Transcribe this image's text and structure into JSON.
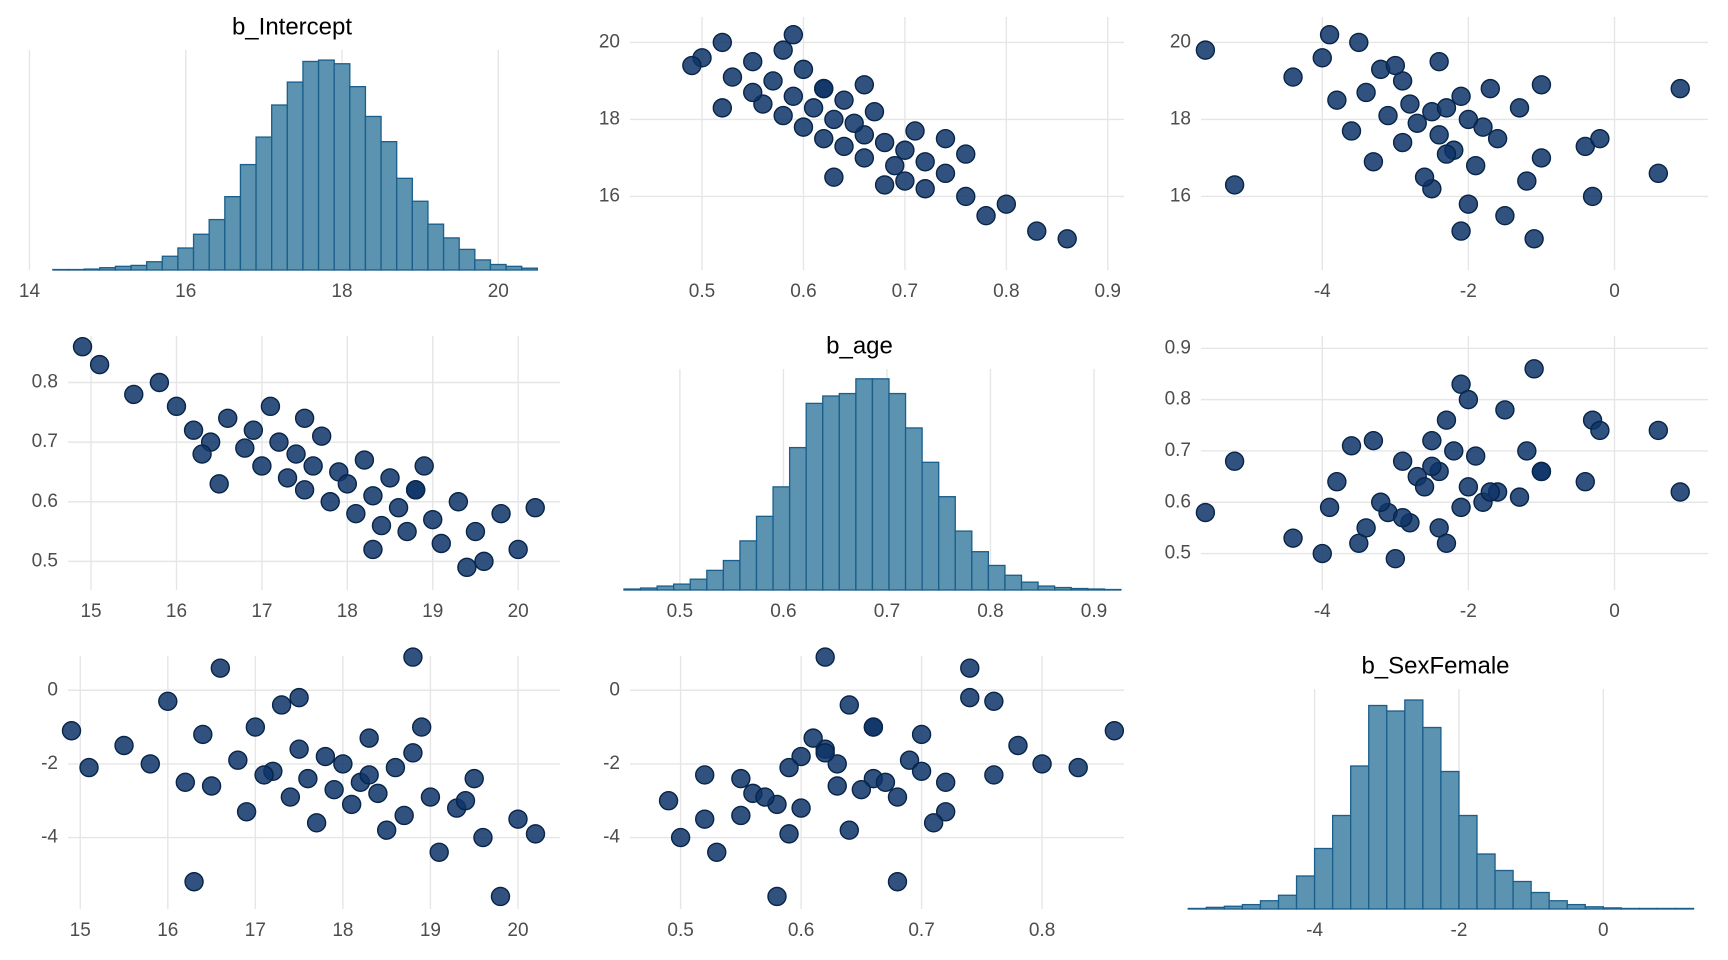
{
  "chart_data": [
    {
      "type": "histogram",
      "title": "b_Intercept",
      "color": "#5b93b0",
      "edgecolor": "#1a5e8c",
      "bins": [
        14.3,
        14.5,
        14.7,
        14.9,
        15.1,
        15.3,
        15.5,
        15.7,
        15.9,
        16.1,
        16.3,
        16.5,
        16.7,
        16.9,
        17.1,
        17.3,
        17.5,
        17.7,
        17.9,
        18.1,
        18.3,
        18.5,
        18.7,
        18.9,
        19.1,
        19.3,
        19.5,
        19.7,
        19.9,
        20.1,
        20.3,
        20.5
      ],
      "values": [
        1,
        1,
        2,
        5,
        8,
        10,
        18,
        30,
        48,
        78,
        110,
        160,
        230,
        290,
        360,
        410,
        455,
        458,
        450,
        400,
        335,
        280,
        200,
        150,
        100,
        70,
        45,
        22,
        12,
        8,
        4
      ],
      "xlim": [
        13.93,
        20.79
      ],
      "ylim": [
        0,
        480
      ],
      "xticks": [
        14,
        16,
        18,
        20
      ],
      "grid": true
    },
    {
      "type": "scatter",
      "color": "#0d3469",
      "edgecolor": "#082447",
      "x": [
        0.86,
        0.83,
        0.78,
        0.76,
        0.72,
        0.7,
        0.74,
        0.69,
        0.72,
        0.66,
        0.7,
        0.64,
        0.68,
        0.62,
        0.66,
        0.71,
        0.6,
        0.65,
        0.63,
        0.58,
        0.67,
        0.61,
        0.56,
        0.64,
        0.59,
        0.55,
        0.62,
        0.57,
        0.53,
        0.6,
        0.55,
        0.5,
        0.58,
        0.52,
        0.59,
        0.76,
        0.66,
        0.63,
        0.74,
        0.52,
        0.8,
        0.49,
        0.62,
        0.68
      ],
      "y": [
        14.9,
        15.1,
        15.5,
        16.0,
        16.2,
        16.4,
        16.6,
        16.8,
        16.9,
        17.0,
        17.2,
        17.3,
        17.4,
        17.5,
        17.6,
        17.7,
        17.8,
        17.9,
        18.0,
        18.1,
        18.2,
        18.3,
        18.4,
        18.5,
        18.6,
        18.7,
        18.8,
        19.0,
        19.1,
        19.3,
        19.5,
        19.6,
        19.8,
        20.0,
        20.2,
        17.1,
        18.9,
        16.5,
        17.5,
        18.3,
        15.8,
        19.4,
        18.8,
        16.3
      ],
      "xlim": [
        0.429,
        0.916
      ],
      "ylim": [
        14.09,
        20.66
      ],
      "xticks": [
        0.5,
        0.6,
        0.7,
        0.8,
        0.9
      ],
      "yticks": [
        16,
        18,
        20
      ],
      "grid": true
    },
    {
      "type": "scatter",
      "color": "#0d3469",
      "edgecolor": "#082447",
      "x": [
        -1.1,
        -2.1,
        -1.5,
        -0.3,
        -2.5,
        -1.2,
        0.6,
        -1.9,
        -3.3,
        -1.0,
        -2.2,
        -0.4,
        -2.9,
        -1.6,
        -2.4,
        -3.6,
        -1.8,
        -2.7,
        -2.0,
        -3.1,
        -2.5,
        -1.3,
        -2.8,
        -3.8,
        -2.1,
        -3.4,
        -1.7,
        -2.9,
        -4.4,
        -3.2,
        -2.4,
        -4.0,
        -5.6,
        -3.5,
        -3.9,
        -2.3,
        -1.0,
        -2.6,
        -0.2,
        -2.3,
        -2.0,
        -3.0,
        0.9,
        -5.2
      ],
      "y": [
        14.9,
        15.1,
        15.5,
        16.0,
        16.2,
        16.4,
        16.6,
        16.8,
        16.9,
        17.0,
        17.2,
        17.3,
        17.4,
        17.5,
        17.6,
        17.7,
        17.8,
        17.9,
        18.0,
        18.1,
        18.2,
        18.3,
        18.4,
        18.5,
        18.6,
        18.7,
        18.8,
        19.0,
        19.1,
        19.3,
        19.5,
        19.6,
        19.8,
        20.0,
        20.2,
        17.1,
        18.9,
        16.5,
        17.5,
        18.3,
        15.8,
        19.4,
        18.8,
        16.3
      ],
      "xlim": [
        -5.66,
        1.28
      ],
      "ylim": [
        14.09,
        20.66
      ],
      "xticks": [
        -4,
        -2,
        0
      ],
      "yticks": [
        16,
        18,
        20
      ],
      "grid": true
    },
    {
      "type": "scatter",
      "color": "#0d3469",
      "edgecolor": "#082447",
      "x": [
        14.9,
        15.1,
        15.5,
        16.0,
        16.2,
        16.4,
        16.6,
        16.8,
        16.9,
        17.0,
        17.2,
        17.3,
        17.4,
        17.5,
        17.6,
        17.7,
        17.8,
        17.9,
        18.0,
        18.1,
        18.2,
        18.3,
        18.4,
        18.5,
        18.6,
        18.7,
        18.8,
        19.0,
        19.1,
        19.3,
        19.5,
        19.6,
        19.8,
        20.0,
        20.2,
        17.1,
        18.9,
        16.5,
        17.5,
        18.3,
        15.8,
        19.4,
        18.8,
        16.3
      ],
      "y": [
        0.86,
        0.83,
        0.78,
        0.76,
        0.72,
        0.7,
        0.74,
        0.69,
        0.72,
        0.66,
        0.7,
        0.64,
        0.68,
        0.62,
        0.66,
        0.71,
        0.6,
        0.65,
        0.63,
        0.58,
        0.67,
        0.61,
        0.56,
        0.64,
        0.59,
        0.55,
        0.62,
        0.57,
        0.53,
        0.6,
        0.55,
        0.5,
        0.58,
        0.52,
        0.59,
        0.76,
        0.66,
        0.63,
        0.74,
        0.52,
        0.8,
        0.49,
        0.62,
        0.68
      ],
      "xlim": [
        14.73,
        20.49
      ],
      "ylim": [
        0.452,
        0.878
      ],
      "xticks": [
        15,
        16,
        17,
        18,
        19,
        20
      ],
      "yticks": [
        0.5,
        0.6,
        0.7,
        0.8
      ],
      "grid": true
    },
    {
      "type": "histogram",
      "title": "b_age",
      "color": "#5b93b0",
      "edgecolor": "#1a5e8c",
      "bins": [
        0.446,
        0.462,
        0.478,
        0.494,
        0.51,
        0.526,
        0.542,
        0.558,
        0.574,
        0.59,
        0.606,
        0.622,
        0.638,
        0.654,
        0.67,
        0.686,
        0.702,
        0.718,
        0.734,
        0.75,
        0.766,
        0.782,
        0.798,
        0.814,
        0.83,
        0.846,
        0.862,
        0.878,
        0.894,
        0.91,
        0.926
      ],
      "values": [
        2,
        4,
        8,
        12,
        22,
        40,
        60,
        100,
        150,
        210,
        290,
        380,
        395,
        400,
        430,
        430,
        400,
        330,
        260,
        190,
        120,
        78,
        50,
        30,
        16,
        8,
        5,
        3,
        2,
        1
      ],
      "xlim": [
        0.418,
        0.929
      ],
      "ylim": [
        0,
        450
      ],
      "xticks": [
        0.5,
        0.6,
        0.7,
        0.8,
        0.9
      ],
      "grid": true
    },
    {
      "type": "scatter",
      "color": "#0d3469",
      "edgecolor": "#082447",
      "x": [
        -1.1,
        -2.1,
        -1.5,
        -0.3,
        -2.5,
        -1.2,
        0.6,
        -1.9,
        -3.3,
        -1.0,
        -2.2,
        -0.4,
        -2.9,
        -1.6,
        -2.4,
        -3.6,
        -1.8,
        -2.7,
        -2.0,
        -3.1,
        -2.5,
        -1.3,
        -2.8,
        -3.8,
        -2.1,
        -3.4,
        -1.7,
        -2.9,
        -4.4,
        -3.2,
        -2.4,
        -4.0,
        -5.6,
        -3.5,
        -3.9,
        -2.3,
        -1.0,
        -2.6,
        -0.2,
        -2.3,
        -2.0,
        -3.0,
        0.9,
        -5.2
      ],
      "y": [
        0.86,
        0.83,
        0.78,
        0.76,
        0.72,
        0.7,
        0.74,
        0.69,
        0.72,
        0.66,
        0.7,
        0.64,
        0.68,
        0.62,
        0.66,
        0.71,
        0.6,
        0.65,
        0.63,
        0.58,
        0.67,
        0.61,
        0.56,
        0.64,
        0.59,
        0.55,
        0.62,
        0.57,
        0.53,
        0.6,
        0.55,
        0.5,
        0.58,
        0.52,
        0.59,
        0.76,
        0.66,
        0.63,
        0.74,
        0.52,
        0.8,
        0.49,
        0.62,
        0.68
      ],
      "xlim": [
        -5.66,
        1.28
      ],
      "ylim": [
        0.429,
        0.924
      ],
      "xticks": [
        -4,
        -2,
        0
      ],
      "yticks": [
        0.5,
        0.6,
        0.7,
        0.8,
        0.9
      ],
      "grid": true
    },
    {
      "type": "scatter",
      "color": "#0d3469",
      "edgecolor": "#082447",
      "x": [
        14.9,
        15.1,
        15.5,
        16.0,
        16.2,
        16.4,
        16.6,
        16.8,
        16.9,
        17.0,
        17.2,
        17.3,
        17.4,
        17.5,
        17.6,
        17.7,
        17.8,
        17.9,
        18.0,
        18.1,
        18.2,
        18.3,
        18.4,
        18.5,
        18.6,
        18.7,
        18.8,
        19.0,
        19.1,
        19.3,
        19.5,
        19.6,
        19.8,
        20.0,
        20.2,
        17.1,
        18.9,
        16.5,
        17.5,
        18.3,
        15.8,
        19.4,
        18.8,
        16.3
      ],
      "y": [
        -1.1,
        -2.1,
        -1.5,
        -0.3,
        -2.5,
        -1.2,
        0.6,
        -1.9,
        -3.3,
        -1.0,
        -2.2,
        -0.4,
        -2.9,
        -1.6,
        -2.4,
        -3.6,
        -1.8,
        -2.7,
        -2.0,
        -3.1,
        -2.5,
        -1.3,
        -2.8,
        -3.8,
        -2.1,
        -3.4,
        -1.7,
        -2.9,
        -4.4,
        -3.2,
        -2.4,
        -4.0,
        -5.6,
        -3.5,
        -3.9,
        -2.3,
        -1.0,
        -2.6,
        -0.2,
        -2.3,
        -2.0,
        -3.0,
        0.9,
        -5.2
      ],
      "xlim": [
        14.86,
        20.48
      ],
      "ylim": [
        -5.94,
        0.93
      ],
      "xticks": [
        15,
        16,
        17,
        18,
        19,
        20
      ],
      "yticks": [
        -4,
        -2,
        0
      ],
      "grid": true
    },
    {
      "type": "scatter",
      "color": "#0d3469",
      "edgecolor": "#082447",
      "x": [
        0.86,
        0.83,
        0.78,
        0.76,
        0.72,
        0.7,
        0.74,
        0.69,
        0.72,
        0.66,
        0.7,
        0.64,
        0.68,
        0.62,
        0.66,
        0.71,
        0.6,
        0.65,
        0.63,
        0.58,
        0.67,
        0.61,
        0.56,
        0.64,
        0.59,
        0.55,
        0.62,
        0.57,
        0.53,
        0.6,
        0.55,
        0.5,
        0.58,
        0.52,
        0.59,
        0.76,
        0.66,
        0.63,
        0.74,
        0.52,
        0.8,
        0.49,
        0.62,
        0.68
      ],
      "y": [
        -1.1,
        -2.1,
        -1.5,
        -0.3,
        -2.5,
        -1.2,
        0.6,
        -1.9,
        -3.3,
        -1.0,
        -2.2,
        -0.4,
        -2.9,
        -1.6,
        -2.4,
        -3.6,
        -1.8,
        -2.7,
        -2.0,
        -3.1,
        -2.5,
        -1.3,
        -2.8,
        -3.8,
        -2.1,
        -3.4,
        -1.7,
        -2.9,
        -4.4,
        -3.2,
        -2.4,
        -4.0,
        -5.6,
        -3.5,
        -3.9,
        -2.3,
        -1.0,
        -2.6,
        -0.2,
        -2.3,
        -2.0,
        -3.0,
        0.9,
        -5.2
      ],
      "xlim": [
        0.458,
        0.868
      ],
      "ylim": [
        -5.94,
        0.93
      ],
      "xticks": [
        0.5,
        0.6,
        0.7,
        0.8
      ],
      "yticks": [
        -4,
        -2,
        0
      ],
      "grid": true
    },
    {
      "type": "histogram",
      "title": "b_SexFemale",
      "color": "#5b93b0",
      "edgecolor": "#1a5e8c",
      "bins": [
        -5.75,
        -5.5,
        -5.25,
        -5.0,
        -4.75,
        -4.5,
        -4.25,
        -4.0,
        -3.75,
        -3.5,
        -3.25,
        -3.0,
        -2.75,
        -2.5,
        -2.25,
        -2.0,
        -1.75,
        -1.5,
        -1.25,
        -1.0,
        -0.75,
        -0.5,
        -0.25,
        0.0,
        0.25,
        0.5,
        0.75,
        1.0,
        1.25
      ],
      "values": [
        1,
        3,
        5,
        8,
        15,
        25,
        60,
        110,
        170,
        260,
        370,
        360,
        380,
        330,
        250,
        170,
        100,
        70,
        50,
        30,
        15,
        8,
        4,
        2,
        1,
        1,
        1,
        1
      ],
      "xlim": [
        -6.1,
        1.45
      ],
      "ylim": [
        0,
        400
      ],
      "xticks": [
        -4,
        -2,
        0
      ],
      "grid": true
    }
  ]
}
